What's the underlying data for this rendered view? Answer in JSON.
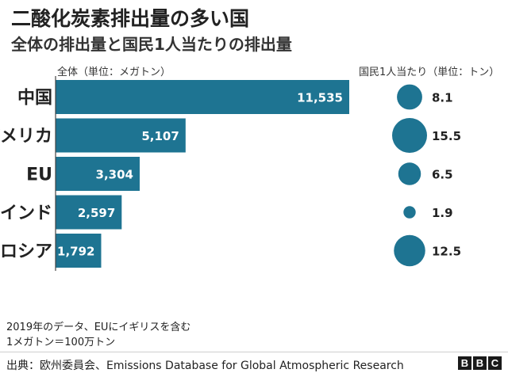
{
  "header": {
    "title": "二酸化炭素排出量の多い国",
    "subtitle": "全体の排出量と国民1人当たりの排出量"
  },
  "chart_data": {
    "type": "bar",
    "categories": [
      "中国",
      "アメリカ",
      "EU",
      "インド",
      "ロシア"
    ],
    "series": [
      {
        "values": [
          11535,
          5107,
          3304,
          2597,
          1792
        ],
        "labels": [
          "11,535",
          "5,107",
          "3,304",
          "2,597",
          "1,792"
        ]
      },
      {
        "values": [
          8.1,
          15.5,
          6.5,
          1.9,
          12.5
        ],
        "labels": [
          "8.1",
          "15.5",
          "6.5",
          "1.9",
          "12.5"
        ]
      }
    ],
    "bar_axis_label": "全体（単位：メガトン）",
    "bubble_axis_label": "国民1人当たり（単位：トン）",
    "title": "二酸化炭素排出量の多い国",
    "subtitle": "全体の排出量と国民1人当たりの排出量",
    "bar_color": "#1e7492",
    "bubble_color": "#1e7492"
  },
  "notes": [
    "2019年のデータ、EUにイギリスを含む",
    "1メガトン＝100万トン"
  ],
  "footer": {
    "source": "出典：欧州委員会、Emissions Database for Global Atmospheric Research",
    "logo": [
      "B",
      "B",
      "C"
    ]
  }
}
